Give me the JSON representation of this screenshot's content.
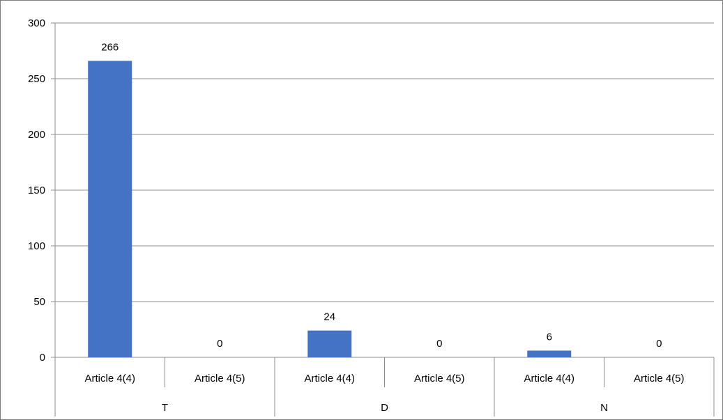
{
  "colors": {
    "bar": "#4472C4",
    "grid": "#8c8c8c",
    "axis": "#8c8c8c",
    "frame": "#7f7f7f"
  },
  "chart_data": {
    "type": "bar",
    "title": "",
    "xlabel": "",
    "ylabel": "",
    "ylim": [
      0,
      300
    ],
    "yticks": [
      0,
      50,
      100,
      150,
      200,
      250,
      300
    ],
    "grid": true,
    "legend": "none",
    "groups": [
      {
        "label": "T",
        "categories": [
          "Article 4(4)",
          "Article 4(5)"
        ],
        "values": [
          266,
          0
        ]
      },
      {
        "label": "D",
        "categories": [
          "Article 4(4)",
          "Article 4(5)"
        ],
        "values": [
          24,
          0
        ]
      },
      {
        "label": "N",
        "categories": [
          "Article 4(4)",
          "Article 4(5)"
        ],
        "values": [
          6,
          0
        ]
      }
    ],
    "data_labels": true
  }
}
